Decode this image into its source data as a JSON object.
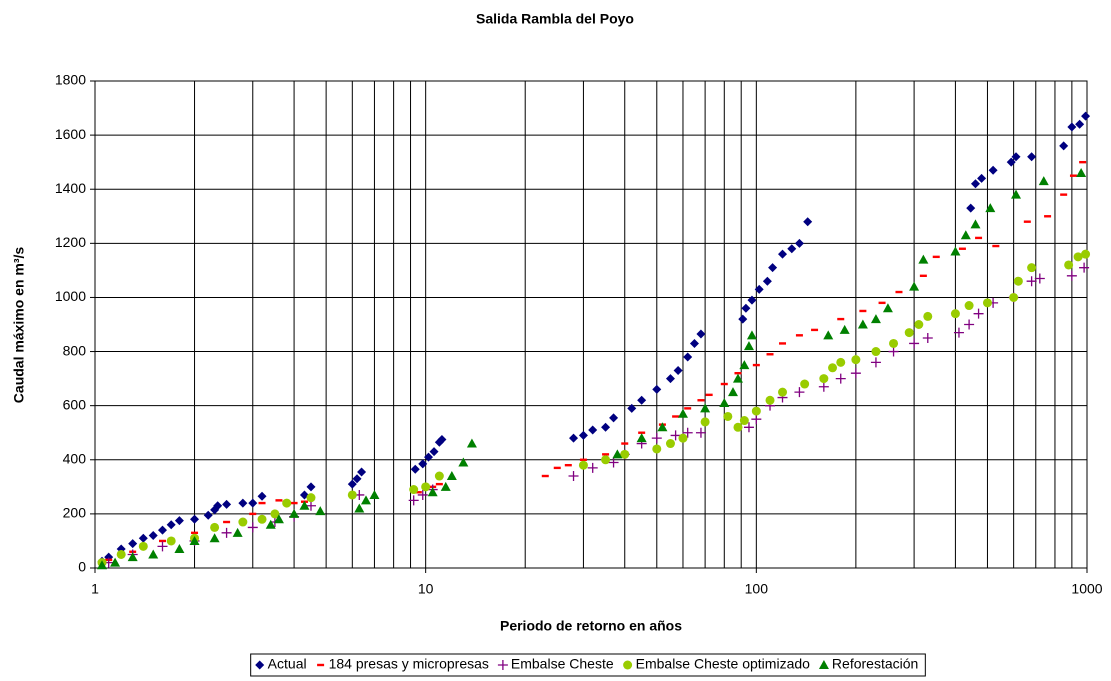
{
  "chart_data": {
    "type": "scatter",
    "title": "Salida Rambla del Poyo",
    "xlabel": "Periodo de retorno en años",
    "ylabel": "Caudal máximo en  m³/s",
    "xscale": "log",
    "xlim": [
      1,
      1000
    ],
    "xticks": [
      1,
      10,
      100,
      1000
    ],
    "ylim": [
      0,
      1800
    ],
    "yticks": [
      0,
      200,
      400,
      600,
      800,
      1000,
      1200,
      1400,
      1600,
      1800
    ],
    "grid": true,
    "minor_grid": true,
    "legend": "bottom",
    "series": [
      {
        "name": "Actual",
        "color": "#000080",
        "marker": "diamond",
        "x": [
          1.05,
          1.1,
          1.2,
          1.3,
          1.4,
          1.5,
          1.6,
          1.7,
          1.8,
          2.0,
          2.2,
          2.3,
          2.35,
          2.5,
          2.8,
          3.0,
          3.2,
          4.3,
          4.5,
          6.0,
          6.2,
          6.4,
          9.3,
          9.8,
          10.2,
          10.6,
          11,
          11.2,
          28,
          30,
          32,
          35,
          37,
          42,
          45,
          50,
          55,
          58,
          62,
          65,
          68,
          91,
          93,
          97,
          102,
          108,
          112,
          120,
          128,
          135,
          143,
          445,
          460,
          480,
          520,
          590,
          610,
          680,
          850,
          900,
          950,
          990
        ],
        "values": [
          25,
          40,
          70,
          90,
          110,
          120,
          140,
          160,
          175,
          180,
          195,
          215,
          230,
          235,
          240,
          240,
          265,
          270,
          300,
          310,
          330,
          355,
          365,
          385,
          410,
          430,
          465,
          475,
          480,
          490,
          510,
          520,
          555,
          590,
          620,
          660,
          700,
          730,
          780,
          830,
          865,
          920,
          960,
          990,
          1030,
          1060,
          1110,
          1160,
          1180,
          1200,
          1280,
          1330,
          1420,
          1440,
          1470,
          1500,
          1520,
          1520,
          1560,
          1630,
          1640,
          1670
        ]
      },
      {
        "name": "184 presas y micropresas",
        "color": "#ff0000",
        "marker": "dash",
        "x": [
          1.1,
          1.3,
          1.6,
          2.0,
          2.5,
          3.0,
          3.2,
          3.6,
          4.0,
          4.3,
          6.0,
          9.5,
          10.5,
          11,
          23,
          25,
          27,
          30,
          35,
          40,
          45,
          52,
          57,
          62,
          68,
          72,
          80,
          88,
          100,
          110,
          120,
          135,
          150,
          180,
          210,
          240,
          270,
          320,
          350,
          420,
          470,
          530,
          660,
          760,
          850,
          910,
          970
        ],
        "values": [
          30,
          60,
          100,
          130,
          170,
          200,
          240,
          250,
          240,
          245,
          270,
          280,
          300,
          310,
          340,
          370,
          380,
          400,
          420,
          460,
          500,
          530,
          560,
          590,
          620,
          640,
          680,
          720,
          750,
          790,
          830,
          860,
          880,
          920,
          950,
          980,
          1020,
          1080,
          1150,
          1180,
          1220,
          1190,
          1280,
          1300,
          1380,
          1450,
          1500
        ]
      },
      {
        "name": "Embalse Cheste",
        "color": "#800080",
        "marker": "plus",
        "x": [
          1.1,
          1.3,
          1.6,
          2.0,
          2.5,
          3.0,
          3.5,
          4.0,
          4.5,
          6.3,
          9.2,
          9.8,
          10.5,
          28,
          32,
          37,
          40,
          45,
          50,
          57,
          62,
          68,
          95,
          100,
          110,
          120,
          135,
          160,
          180,
          200,
          230,
          260,
          300,
          330,
          410,
          440,
          470,
          520,
          600,
          680,
          720,
          900,
          980
        ],
        "values": [
          20,
          50,
          80,
          100,
          130,
          150,
          170,
          190,
          230,
          270,
          250,
          270,
          290,
          340,
          370,
          390,
          420,
          460,
          480,
          490,
          500,
          500,
          520,
          550,
          600,
          630,
          650,
          670,
          700,
          720,
          760,
          800,
          830,
          850,
          870,
          900,
          940,
          980,
          1000,
          1060,
          1070,
          1080,
          1110
        ]
      },
      {
        "name": "Embalse Cheste optimizado",
        "color": "#99cc00",
        "marker": "circle",
        "x": [
          1.05,
          1.2,
          1.4,
          1.7,
          2.0,
          2.3,
          2.8,
          3.2,
          3.5,
          3.8,
          4.5,
          6.0,
          9.2,
          10,
          11,
          30,
          35,
          40,
          50,
          55,
          60,
          70,
          82,
          88,
          92,
          100,
          110,
          120,
          140,
          160,
          170,
          180,
          200,
          230,
          260,
          290,
          310,
          330,
          400,
          440,
          500,
          600,
          620,
          680,
          880,
          940,
          990
        ],
        "values": [
          20,
          50,
          80,
          100,
          110,
          150,
          170,
          180,
          200,
          240,
          260,
          270,
          290,
          300,
          340,
          380,
          400,
          420,
          440,
          460,
          480,
          540,
          560,
          520,
          545,
          580,
          620,
          650,
          680,
          700,
          740,
          760,
          770,
          800,
          830,
          870,
          900,
          930,
          940,
          970,
          980,
          1000,
          1060,
          1110,
          1120,
          1150,
          1160
        ]
      },
      {
        "name": "Reforestación",
        "color": "#008000",
        "marker": "triangle",
        "x": [
          1.05,
          1.15,
          1.3,
          1.5,
          1.8,
          2.0,
          2.3,
          2.7,
          3.4,
          3.6,
          4.0,
          4.3,
          4.8,
          6.3,
          6.6,
          7.0,
          10.5,
          11.5,
          12,
          13,
          13.8,
          38,
          45,
          52,
          60,
          70,
          80,
          85,
          88,
          92,
          95,
          97,
          165,
          185,
          210,
          230,
          250,
          300,
          320,
          400,
          430,
          460,
          510,
          610,
          740,
          960
        ],
        "values": [
          10,
          20,
          40,
          50,
          70,
          100,
          110,
          130,
          160,
          180,
          200,
          230,
          210,
          220,
          250,
          270,
          280,
          300,
          340,
          390,
          460,
          420,
          480,
          520,
          570,
          590,
          610,
          650,
          700,
          750,
          820,
          860,
          860,
          880,
          900,
          920,
          960,
          1040,
          1140,
          1170,
          1230,
          1270,
          1330,
          1380,
          1430,
          1460
        ]
      }
    ]
  }
}
